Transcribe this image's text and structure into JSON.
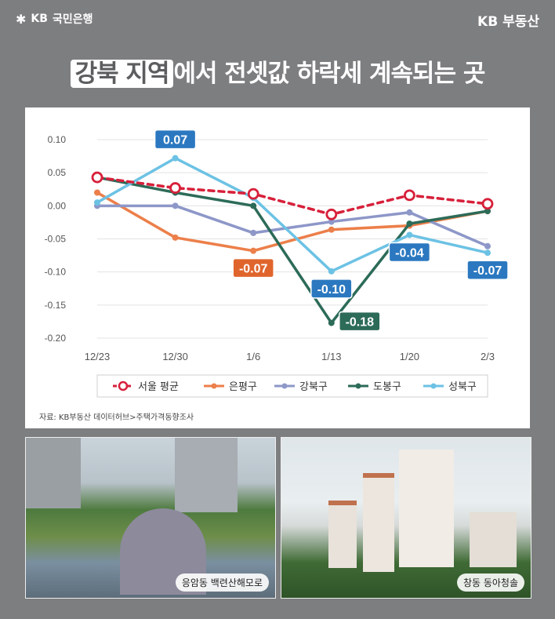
{
  "header": {
    "bank_logo": "국민은행",
    "bank_logo_prefix": "KB",
    "realty_logo": "KB 부동산"
  },
  "headline": {
    "highlight": "강북 지역",
    "rest": "에서 전셋값 하락세 계속되는 곳"
  },
  "chart_data": {
    "type": "line",
    "categories": [
      "12/23",
      "12/30",
      "1/6",
      "1/13",
      "1/20",
      "2/3"
    ],
    "ylim": [
      -0.2,
      0.1
    ],
    "yticks": [
      "0.10",
      "0.05",
      "0.00",
      "-0.05",
      "-0.10",
      "-0.15",
      "-0.20"
    ],
    "ytick_values": [
      0.1,
      0.05,
      0.0,
      -0.05,
      -0.1,
      -0.15,
      -0.2
    ],
    "grid": true,
    "legend_position": "bottom",
    "series": [
      {
        "name": "서울 평균",
        "color": "#d7203a",
        "values": [
          0.043,
          0.027,
          0.018,
          -0.013,
          0.016,
          0.003
        ]
      },
      {
        "name": "은평구",
        "color": "#ec7f4a",
        "values": [
          0.02,
          -0.048,
          -0.068,
          -0.036,
          -0.03,
          -0.008
        ]
      },
      {
        "name": "강북구",
        "color": "#8d97c8",
        "values": [
          0.0,
          0.0,
          -0.041,
          -0.024,
          -0.01,
          -0.061
        ]
      },
      {
        "name": "도봉구",
        "color": "#2c6b58",
        "values": [
          0.043,
          0.02,
          0.0,
          -0.177,
          -0.027,
          -0.008
        ]
      },
      {
        "name": "성북구",
        "color": "#6cc2e4",
        "values": [
          0.005,
          0.072,
          0.012,
          -0.099,
          -0.044,
          -0.071
        ]
      }
    ],
    "annotations": [
      {
        "text": "0.07",
        "series": 4,
        "index": 1,
        "color": "#2b78c0",
        "place": "above"
      },
      {
        "text": "-0.07",
        "series": 1,
        "index": 2,
        "color": "#e0652d",
        "place": "below"
      },
      {
        "text": "-0.10",
        "series": 4,
        "index": 3,
        "color": "#2b78c0",
        "place": "below"
      },
      {
        "text": "-0.18",
        "series": 3,
        "index": 3,
        "color": "#2c6b58",
        "place": "right"
      },
      {
        "text": "-0.04",
        "series": 4,
        "index": 4,
        "color": "#2b78c0",
        "place": "below"
      },
      {
        "text": "-0.07",
        "series": 4,
        "index": 5,
        "color": "#2b78c0",
        "place": "below"
      }
    ]
  },
  "source": "자료: KB부동산 데이터허브>주택가격동향조사",
  "photos": {
    "left_caption": "응암동 백련산해모로",
    "right_caption": "창동 동아청솔"
  }
}
